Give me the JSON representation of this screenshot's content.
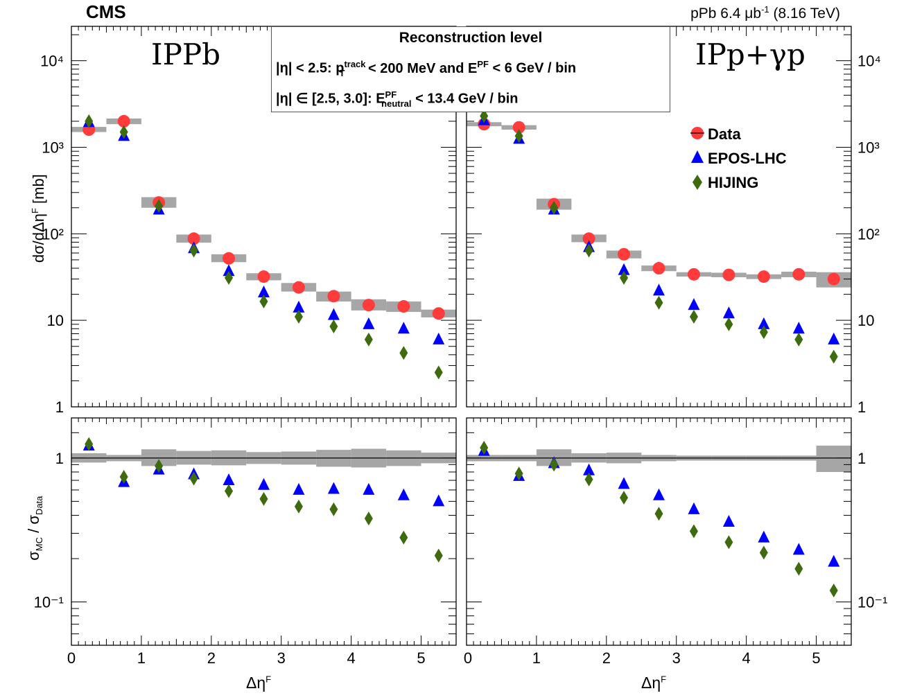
{
  "header": {
    "experiment": "CMS",
    "luminosity_label": "pPb 6.4 μb",
    "lumi_exp": "-1",
    "energy_label": " (8.16 TeV)"
  },
  "panels": {
    "left_title": "IPPb",
    "right_title": "IPp+γp"
  },
  "selection_box": {
    "title": "Reconstruction level",
    "line1": {
      "eta": "|η| < 2.5:  p",
      "pt_sub": "T",
      "pt_sup": "track",
      "mid": " < 200 MeV  and  E",
      "e_sup": "PF",
      "end": " < 6 GeV / bin"
    },
    "line2": {
      "eta": "|η|  ∈ [2.5, 3.0]:  E",
      "e_sup": "PF",
      "e_sub": "neutral",
      "end": " < 13.4 GeV / bin"
    }
  },
  "axes": {
    "top_ylabel_main": "dσ/dΔη",
    "top_ylabel_sup": "F",
    "top_ylabel_unit": " [mb]",
    "bottom_ylabel_sigma": "σ",
    "bottom_ylabel_mc": "MC",
    "bottom_ylabel_slash": " / σ",
    "bottom_ylabel_data": "Data",
    "xlabel_main": "Δη",
    "xlabel_sup": "F"
  },
  "chart_data": {
    "type": "scatter",
    "x": [
      0.25,
      0.75,
      1.25,
      1.75,
      2.25,
      2.75,
      3.25,
      3.75,
      4.25,
      4.75,
      5.25
    ],
    "xlim": [
      0,
      5.5
    ],
    "x_ticks": [
      "0",
      "1",
      "2",
      "3",
      "4",
      "5"
    ],
    "xlabel": "ΔηF",
    "top_ylim": [
      1,
      25000
    ],
    "top_scale": "log",
    "top_y_ticks": [
      "1",
      "10",
      "10²",
      "10³",
      "10⁴"
    ],
    "ratio_ylim": [
      0.05,
      1.9
    ],
    "ratio_scale": "log",
    "ratio_y_ticks": [
      "10⁻¹",
      "1"
    ],
    "legend": [
      "Data",
      "EPOS-LHC",
      "HIJING"
    ],
    "legend_position": "top-right",
    "colors": {
      "Data": "#ff3b3b",
      "EPOS-LHC": "#0000ff",
      "HIJING": "#3e6b0e",
      "syst_band": "#a6a6a6"
    },
    "panels": [
      {
        "name": "IPPb",
        "series": [
          {
            "name": "Data",
            "values": [
              1600,
              2000,
              230,
              88,
              52,
              32,
              24,
              19,
              15,
              14.5,
              12
            ],
            "syst_low": [
              1500,
              1850,
              200,
              79,
              47,
              29,
              21.5,
              16.5,
              13,
              12.5,
              10.8
            ],
            "syst_high": [
              1720,
              2150,
              265,
              98,
              58,
              35,
              27,
              21.5,
              17.5,
              16.5,
              13.3
            ]
          },
          {
            "name": "EPOS-LHC",
            "values": [
              1950,
              1350,
              190,
              68,
              37,
              21,
              14,
              11.5,
              9,
              8,
              6
            ]
          },
          {
            "name": "HIJING",
            "values": [
              2000,
              1500,
              210,
              64,
              31,
              16.5,
              11,
              8.5,
              6,
              4.2,
              2.5
            ]
          }
        ],
        "ratio": [
          {
            "name": "EPOS-LHC",
            "values": [
              1.22,
              0.68,
              0.83,
              0.77,
              0.7,
              0.65,
              0.6,
              0.61,
              0.6,
              0.55,
              0.5
            ]
          },
          {
            "name": "HIJING",
            "values": [
              1.25,
              0.74,
              0.88,
              0.72,
              0.59,
              0.52,
              0.46,
              0.44,
              0.38,
              0.28,
              0.21
            ]
          }
        ],
        "ratio_band": [
          [
            0.93,
            1.08
          ],
          [
            0.95,
            1.05
          ],
          [
            0.88,
            1.15
          ],
          [
            0.9,
            1.12
          ],
          [
            0.89,
            1.13
          ],
          [
            0.91,
            1.1
          ],
          [
            0.9,
            1.11
          ],
          [
            0.87,
            1.14
          ],
          [
            0.86,
            1.16
          ],
          [
            0.88,
            1.13
          ],
          [
            0.92,
            1.09
          ]
        ]
      },
      {
        "name": "IPp+γp",
        "series": [
          {
            "name": "Data",
            "values": [
              1850,
              1700,
              220,
              88,
              58,
              40,
              34,
              33.5,
              32,
              34,
              30
            ],
            "syst_low": [
              1750,
              1600,
              190,
              80,
              52,
              37,
              32,
              31.5,
              30,
              31.5,
              24
            ],
            "syst_high": [
              1950,
              1800,
              255,
              98,
              64,
              43,
              36,
              35.5,
              34,
              36.5,
              36
            ]
          },
          {
            "name": "EPOS-LHC",
            "values": [
              2050,
              1250,
              190,
              70,
              38,
              22,
              15,
              12,
              9,
              8,
              6
            ]
          },
          {
            "name": "HIJING",
            "values": [
              2300,
              1350,
              200,
              64,
              31,
              16,
              11,
              9,
              7.3,
              6,
              3.8
            ]
          }
        ],
        "ratio": [
          {
            "name": "EPOS-LHC",
            "values": [
              1.12,
              0.75,
              0.92,
              0.82,
              0.66,
              0.55,
              0.44,
              0.36,
              0.28,
              0.23,
              0.19
            ]
          },
          {
            "name": "HIJING",
            "values": [
              1.18,
              0.78,
              0.9,
              0.71,
              0.53,
              0.41,
              0.31,
              0.26,
              0.22,
              0.17,
              0.12
            ]
          }
        ],
        "ratio_band": [
          [
            0.95,
            1.05
          ],
          [
            0.95,
            1.05
          ],
          [
            0.88,
            1.15
          ],
          [
            0.93,
            1.08
          ],
          [
            0.92,
            1.09
          ],
          [
            0.95,
            1.05
          ],
          [
            0.96,
            1.04
          ],
          [
            0.96,
            1.04
          ],
          [
            0.96,
            1.04
          ],
          [
            0.96,
            1.04
          ],
          [
            0.8,
            1.22
          ]
        ]
      }
    ]
  }
}
